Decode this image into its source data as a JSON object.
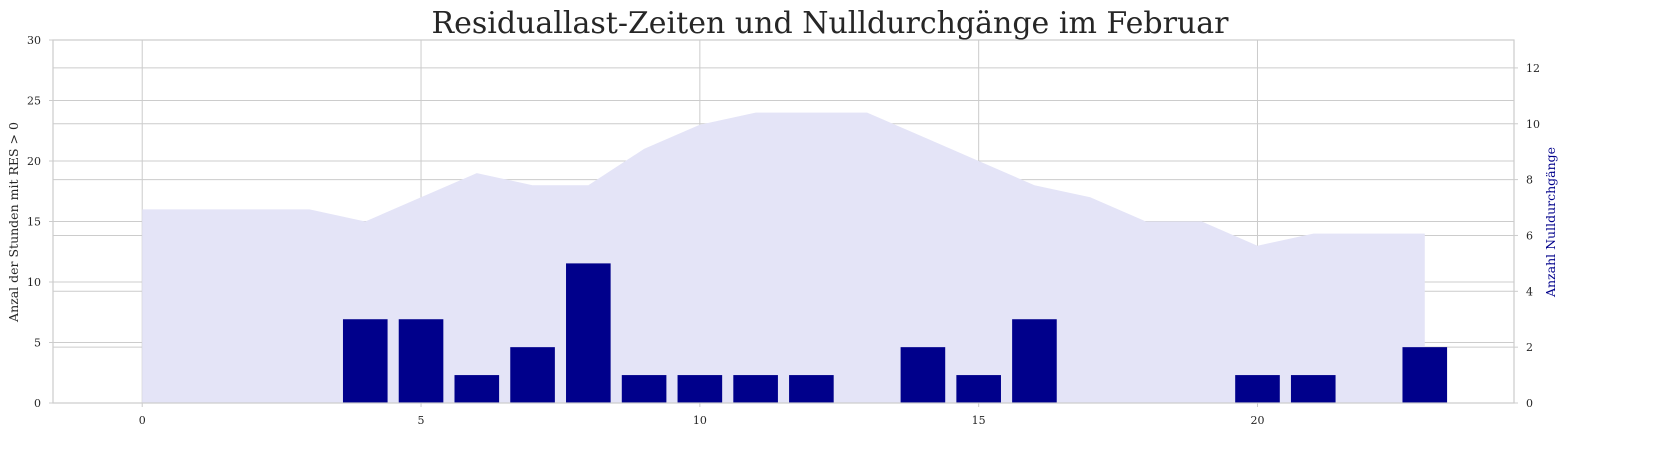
{
  "chart_data": {
    "type": "bar",
    "title": "Residuallast-Zeiten und Nulldurchgänge im Februar",
    "ylabel_left": "Anzal der Stunden mit RES > 0",
    "ylabel_right": "Anzahl Nulldurchgänge",
    "xlim": [
      -1.6,
      24.6
    ],
    "ylim_left": [
      0,
      30
    ],
    "ylim_right": [
      0,
      13
    ],
    "xticks": [
      0,
      5,
      10,
      15,
      20
    ],
    "yticks_left": [
      0,
      5,
      10,
      15,
      20,
      25,
      30
    ],
    "yticks_right": [
      0,
      2,
      4,
      6,
      8,
      10,
      12
    ],
    "grid": true,
    "area_series": {
      "axis": "left",
      "color": "#e4e4f7",
      "x": [
        0,
        1,
        2,
        3,
        4,
        5,
        6,
        7,
        8,
        9,
        10,
        11,
        12,
        13,
        14,
        15,
        16,
        17,
        18,
        19,
        20,
        21,
        22,
        23
      ],
      "values": [
        16,
        16,
        16,
        16,
        15,
        17,
        19,
        18,
        18,
        21,
        23,
        24,
        24,
        24,
        22,
        20,
        18,
        17,
        15,
        15,
        13,
        14,
        14,
        14
      ]
    },
    "bar_series": {
      "axis": "right",
      "color": "#00008b",
      "x": [
        4,
        5,
        6,
        7,
        8,
        9,
        10,
        11,
        12,
        14,
        15,
        16,
        20,
        21,
        23
      ],
      "values": [
        3,
        3,
        1,
        2,
        5,
        1,
        1,
        1,
        1,
        2,
        1,
        3,
        1,
        1,
        2
      ]
    },
    "colors": {
      "grid": "#cccccc",
      "axes": "#cccccc",
      "right_label": "#00008b"
    }
  }
}
